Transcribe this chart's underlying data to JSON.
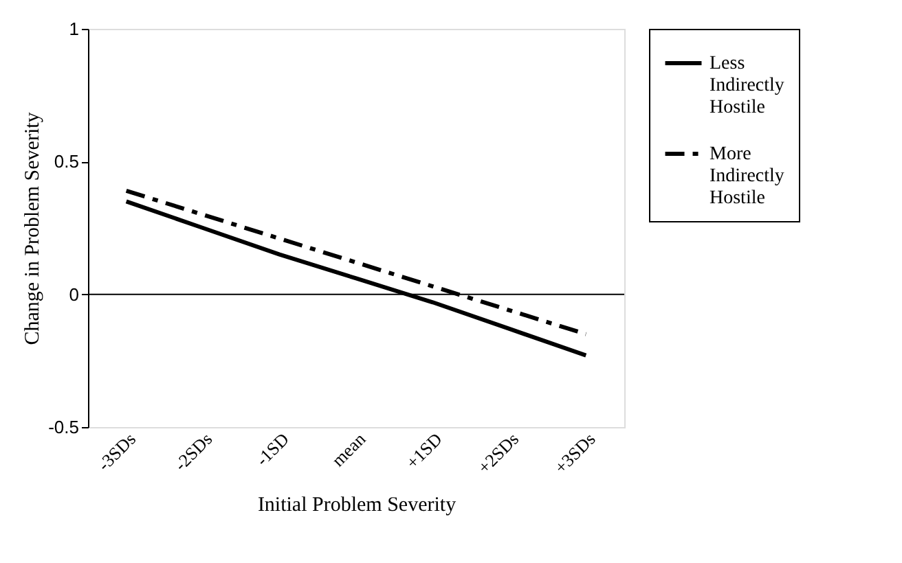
{
  "chart_data": {
    "type": "line",
    "xlabel": "Initial Problem Severity",
    "ylabel": "Change in Problem Severity",
    "categories": [
      "-3SDs",
      "-2SDs",
      "-1SD",
      "mean",
      "+1SD",
      "+2SDs",
      "+3SDs"
    ],
    "series": [
      {
        "name": "Less Indirectly Hostile",
        "color": "#000000",
        "line_style": "solid",
        "values": [
          0.35,
          0.25,
          0.15,
          0.06,
          -0.03,
          -0.13,
          -0.23
        ]
      },
      {
        "name": "More Indirectly Hostile",
        "color": "#000000",
        "line_style": "dashed",
        "values": [
          0.39,
          0.3,
          0.21,
          0.12,
          0.03,
          -0.06,
          -0.15
        ]
      }
    ],
    "ylim": [
      -0.5,
      1
    ],
    "yticks": [
      -0.5,
      0,
      0.5,
      1
    ],
    "ref_lines": [
      {
        "axis": "y",
        "value": 0,
        "color": "#000000"
      }
    ],
    "grid": false,
    "legend": "right",
    "marker": "none"
  }
}
